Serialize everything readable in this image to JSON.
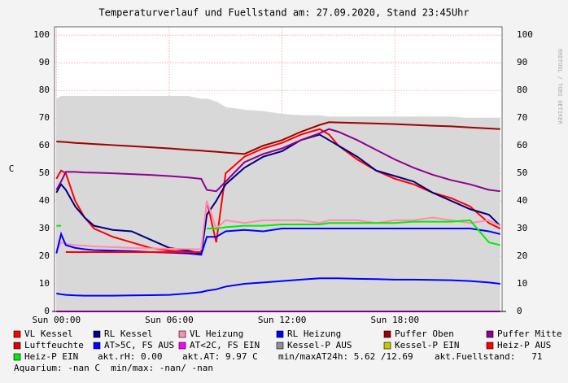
{
  "chart_data": {
    "type": "line",
    "title": "Temperaturverlauf und Fuellstand am: 27.09.2020, Stand 23:45Uhr",
    "y_label": "C",
    "watermark": "RRDTOOL / TOBI OETIKER",
    "x": [
      0,
      0.25,
      0.5,
      1,
      1.5,
      2,
      3,
      4,
      5,
      6,
      7,
      7.7,
      8,
      8.5,
      9,
      10,
      11,
      12,
      13,
      14,
      14.5,
      15,
      16,
      17,
      18,
      19,
      20,
      21,
      22,
      23,
      23.6
    ],
    "xlim": [
      -0.1,
      23.7
    ],
    "xticks": [
      {
        "value": 0,
        "label": "Sun 00:00"
      },
      {
        "value": 6,
        "label": "Sun 06:00"
      },
      {
        "value": 12,
        "label": "Sun 12:00"
      },
      {
        "value": 18,
        "label": "Sun 18:00"
      }
    ],
    "ylim": [
      0,
      103
    ],
    "yticks": [
      0,
      10,
      20,
      30,
      40,
      50,
      60,
      70,
      80,
      90,
      100
    ],
    "grid": true,
    "series": [
      {
        "name": "VL Kessel",
        "color": "#ff0000",
        "values": [
          48,
          51,
          50,
          40,
          34,
          30,
          27,
          25,
          23,
          22,
          21.5,
          21,
          40,
          25,
          50,
          56,
          59,
          61,
          64,
          66,
          64,
          60,
          55,
          51,
          48,
          46,
          43,
          41,
          38,
          32,
          30
        ]
      },
      {
        "name": "RL Kessel",
        "color": "#000080",
        "values": [
          43,
          46,
          44,
          38,
          34,
          31,
          29.5,
          29,
          26,
          23,
          22,
          21,
          35,
          40,
          46,
          52,
          56,
          58,
          62,
          64,
          62,
          60,
          56,
          51,
          49,
          47,
          43,
          40,
          37,
          35,
          31
        ]
      },
      {
        "name": "VL Heizung",
        "color": "#ff8cb4",
        "values": [
          22,
          25,
          24.5,
          24,
          23.8,
          23.5,
          23.3,
          23,
          22.8,
          22.7,
          22.6,
          22.5,
          40,
          30,
          33,
          32,
          33,
          33,
          33,
          32,
          33,
          33,
          33,
          32,
          33,
          33,
          34,
          33,
          32,
          33,
          31
        ]
      },
      {
        "name": "RL Heizung",
        "color": "#0000ff",
        "values": [
          21,
          28,
          24,
          23,
          22.5,
          22.2,
          22,
          21.8,
          21.5,
          21.3,
          21,
          20.5,
          27,
          27,
          29,
          29.5,
          29,
          30,
          30,
          30,
          30,
          30,
          30,
          30,
          30,
          30,
          30,
          30,
          30,
          29,
          28
        ]
      },
      {
        "name": "Puffer Oben",
        "color": "#a00000",
        "values": [
          61.5,
          61.4,
          61.3,
          61,
          60.8,
          60.6,
          60.2,
          59.8,
          59.4,
          59,
          58.5,
          58.2,
          58,
          57.8,
          57.5,
          57,
          60,
          62,
          65,
          67.5,
          68.5,
          68.4,
          68.2,
          68,
          67.8,
          67.5,
          67.2,
          67,
          66.6,
          66.2,
          66
        ]
      },
      {
        "name": "Puffer Mitte",
        "color": "#900090",
        "values": [
          44,
          47,
          50.5,
          50.5,
          50.3,
          50.2,
          50,
          49.7,
          49.4,
          49,
          48.5,
          48,
          44,
          43.5,
          47,
          54,
          57,
          59,
          62,
          64.5,
          66,
          65,
          62,
          58.5,
          55,
          52,
          49.5,
          47.5,
          46,
          44,
          43.5
        ]
      },
      {
        "name": "Luftfeuchte",
        "color": "#e00000",
        "values": [
          null,
          null,
          null,
          null,
          null,
          null,
          null,
          null,
          null,
          null,
          null,
          null,
          null,
          null,
          null,
          null,
          null,
          null,
          null,
          null,
          null,
          null,
          null,
          null,
          null,
          null,
          null,
          null,
          null,
          null,
          null
        ]
      },
      {
        "name": "AT>5C, FS AUS",
        "color": "#0000ff",
        "values": [
          6.5,
          6.2,
          6,
          5.8,
          5.7,
          5.7,
          5.7,
          5.8,
          5.9,
          6,
          6.5,
          7,
          7.5,
          8,
          9,
          10,
          10.5,
          11,
          11.5,
          12,
          12,
          12,
          11.8,
          11.7,
          11.5,
          11.5,
          11.4,
          11.3,
          11,
          10.5,
          10
        ]
      },
      {
        "name": "AT<2C, FS EIN",
        "color": "#ff00ff",
        "values": [
          0,
          0,
          0,
          0,
          0,
          0,
          0,
          0,
          0,
          0,
          0,
          0,
          0,
          0,
          0,
          0,
          0,
          0,
          0,
          0,
          0,
          0,
          0,
          0,
          0,
          0,
          0,
          0,
          0,
          0,
          0
        ]
      },
      {
        "name": "Kessel-P AUS",
        "color": "#d8d8d8",
        "style": "area",
        "values": [
          77,
          78,
          78,
          78,
          78,
          78,
          78,
          78,
          78,
          78,
          78,
          77,
          77,
          76,
          74,
          73,
          72.5,
          71.5,
          71,
          71,
          70.5,
          70.5,
          70.5,
          70.5,
          70.5,
          70.5,
          70.5,
          70.5,
          70,
          70,
          70
        ]
      },
      {
        "name": "Kessel-P EIN",
        "color": "#c8c800",
        "values": [
          null,
          null,
          null,
          null,
          null,
          null,
          null,
          null,
          null,
          null,
          null,
          null,
          null,
          null,
          null,
          null,
          null,
          null,
          null,
          null,
          null,
          null,
          null,
          null,
          null,
          null,
          null,
          null,
          null,
          null,
          null
        ]
      },
      {
        "name": "Heiz-P AUS",
        "color": "#ff0000",
        "values": [
          null,
          null,
          21.5,
          21.5,
          21.5,
          21.5,
          21.5,
          21.5,
          21.5,
          21.5,
          21.5,
          21.5,
          null,
          null,
          null,
          null,
          null,
          null,
          null,
          null,
          null,
          null,
          null,
          null,
          null,
          null,
          null,
          null,
          null,
          null,
          21.5
        ]
      },
      {
        "name": "Heiz-P EIN",
        "color": "#00ee00",
        "values": [
          31,
          31,
          null,
          null,
          null,
          null,
          null,
          null,
          null,
          null,
          null,
          null,
          30,
          30,
          30.5,
          31,
          31,
          31.5,
          31.5,
          31.5,
          32,
          32,
          32,
          32,
          32,
          32.5,
          32.5,
          32.5,
          33,
          25,
          24
        ]
      }
    ],
    "notes": [
      "akt.rH: 0.00",
      "akt.AT: 9.97 C",
      "min/maxAT24h: 5.62 /12.69",
      "akt.Fuellstand:   71",
      "Aquarium: -nan C  min/max: -nan/ -nan"
    ]
  }
}
